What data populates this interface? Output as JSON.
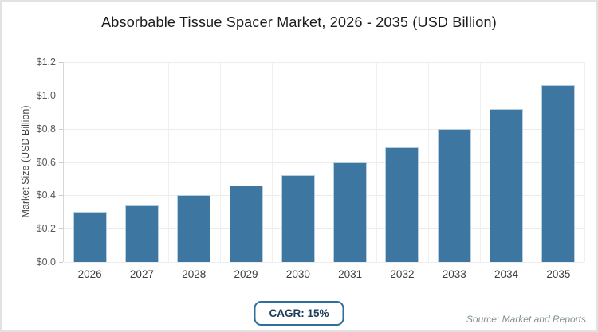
{
  "chart_data": {
    "type": "bar",
    "title": "Absorbable Tissue Spacer Market, 2026 - 2035 (USD Billion)",
    "categories": [
      "2026",
      "2027",
      "2028",
      "2029",
      "2030",
      "2031",
      "2032",
      "2033",
      "2034",
      "2035"
    ],
    "values": [
      0.3,
      0.34,
      0.4,
      0.46,
      0.52,
      0.6,
      0.69,
      0.8,
      0.92,
      1.06
    ],
    "xlabel": "",
    "ylabel": "Market Size (USD Billion)",
    "ylim": [
      0,
      1.2
    ],
    "ytick_step": 0.2,
    "ytick_labels": [
      "$0.0",
      "$0.2",
      "$0.4",
      "$0.6",
      "$0.8",
      "$1.0",
      "$1.2"
    ],
    "grid": "both",
    "legend": "none",
    "bar_color": "#3d76a0"
  },
  "footer": {
    "cagr_label": "CAGR: 15%",
    "source": "Source: Market and Reports"
  },
  "colors": {
    "bar": "#3d76a0",
    "grid": "#ececec",
    "axis_spine": "#d7d7d7",
    "badge_border": "#2e6f9e",
    "badge_text": "#1d3c5a",
    "title_text": "#1c1c1c",
    "tick_text": "#595959",
    "source_text": "#828f94",
    "background": "#ffffff"
  }
}
